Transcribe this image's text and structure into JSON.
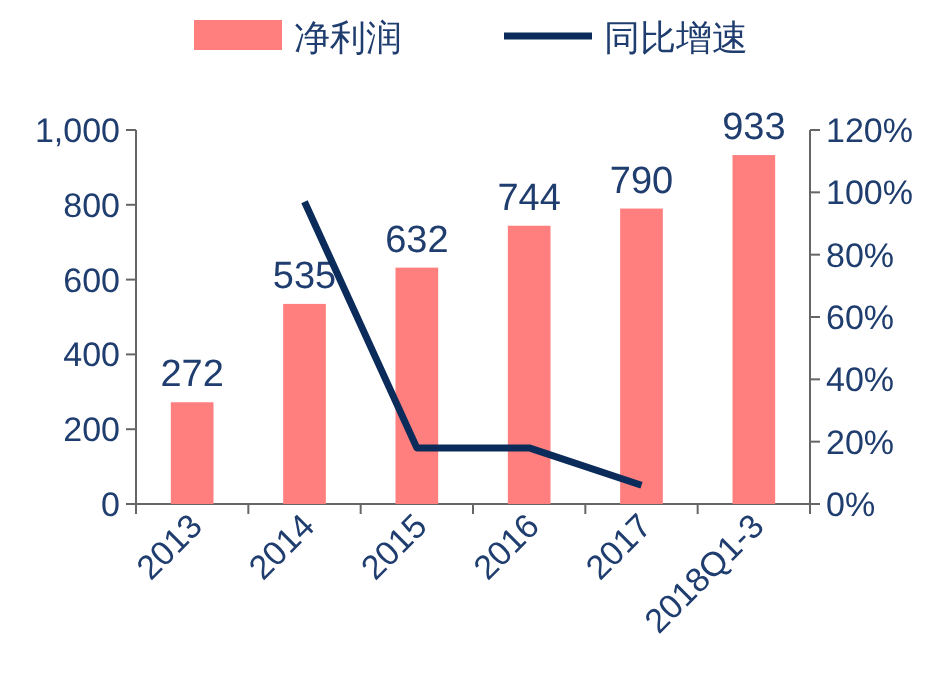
{
  "chart_data": {
    "type": "bar",
    "categories": [
      "2013",
      "2014",
      "2015",
      "2016",
      "2017",
      "2018Q1-3"
    ],
    "series": [
      {
        "name": "净利润",
        "color": "#ff7f7f",
        "values": [
          272,
          535,
          632,
          744,
          790,
          933
        ],
        "value_labels": [
          "272",
          "535",
          "632",
          "744",
          "790",
          "933"
        ]
      },
      {
        "name": "同比增速",
        "type": "line",
        "axis": "y2",
        "color": "#0b2c5a",
        "values": [
          null,
          97,
          18,
          18,
          6,
          null
        ]
      }
    ],
    "ylim": [
      0,
      1000
    ],
    "yticks": [
      0,
      200,
      400,
      600,
      800,
      {
        "value": 1000,
        "label": "1,000"
      }
    ],
    "y2lim": [
      0,
      120
    ],
    "y2ticks": [
      {
        "value": 0,
        "label": "0%"
      },
      {
        "value": 20,
        "label": "20%"
      },
      {
        "value": 40,
        "label": "40%"
      },
      {
        "value": 60,
        "label": "60%"
      },
      {
        "value": 80,
        "label": "80%"
      },
      {
        "value": 100,
        "label": "100%"
      },
      {
        "value": 120,
        "label": "120%"
      }
    ],
    "legend": "top",
    "grid": false,
    "marker": "none"
  }
}
